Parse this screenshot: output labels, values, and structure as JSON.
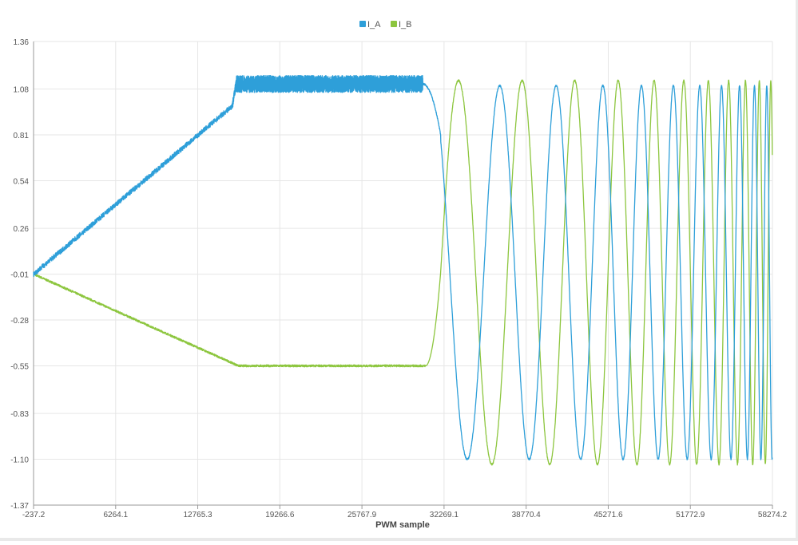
{
  "chart_data": {
    "type": "line",
    "title": "",
    "xlabel": "PWM sample",
    "ylabel": "",
    "xlim": [
      -237.2,
      58274.2
    ],
    "ylim": [
      -1.37,
      1.36
    ],
    "x_ticks": [
      "-237.2",
      "6264.1",
      "12765.3",
      "19266.6",
      "25767.9",
      "32269.1",
      "38770.4",
      "45271.6",
      "51772.9",
      "58274.2"
    ],
    "x_tick_values": [
      -237.2,
      6264.1,
      12765.3,
      19266.6,
      25767.9,
      32269.1,
      38770.4,
      45271.6,
      51772.9,
      58274.2
    ],
    "y_ticks": [
      "1.36",
      "1.08",
      "0.81",
      "0.54",
      "0.26",
      "-0.01",
      "-0.28",
      "-0.55",
      "-0.83",
      "-1.10",
      "-1.37"
    ],
    "y_tick_values": [
      1.36,
      1.08,
      0.81,
      0.54,
      0.26,
      -0.01,
      -0.28,
      -0.55,
      -0.83,
      -1.1,
      -1.37
    ],
    "grid": true,
    "legend_position": "top-center",
    "series": [
      {
        "name": "I_A",
        "color": "#2e9fd9",
        "description_points": [
          [
            -237.2,
            -0.01
          ],
          [
            15500,
            0.98
          ],
          [
            15800,
            1.11
          ],
          [
            30400,
            1.11
          ],
          [
            31300,
            1.08
          ],
          [
            32500,
            0.3
          ],
          [
            33400,
            -0.6
          ],
          [
            34700,
            -1.11
          ],
          [
            35700,
            -0.6
          ],
          [
            36300,
            0.3
          ],
          [
            36800,
            1.1
          ]
        ],
        "oscillation": {
          "start": 32000,
          "end": 58274.2,
          "amplitude": 1.1,
          "period_start": 5800,
          "period_end": 800,
          "noise_band": [
            1.06,
            1.16
          ],
          "noise_range": [
            15800,
            30600
          ]
        }
      },
      {
        "name": "I_B",
        "color": "#8dc63f",
        "description_points": [
          [
            -237.2,
            -0.01
          ],
          [
            16000,
            -0.55
          ],
          [
            30600,
            -0.55
          ],
          [
            31600,
            -0.3
          ],
          [
            32500,
            0.6
          ],
          [
            33600,
            1.14
          ],
          [
            34600,
            0.4
          ],
          [
            35700,
            -1.14
          ],
          [
            36800,
            -0.2
          ],
          [
            37700,
            1.12
          ]
        ]
      }
    ]
  }
}
